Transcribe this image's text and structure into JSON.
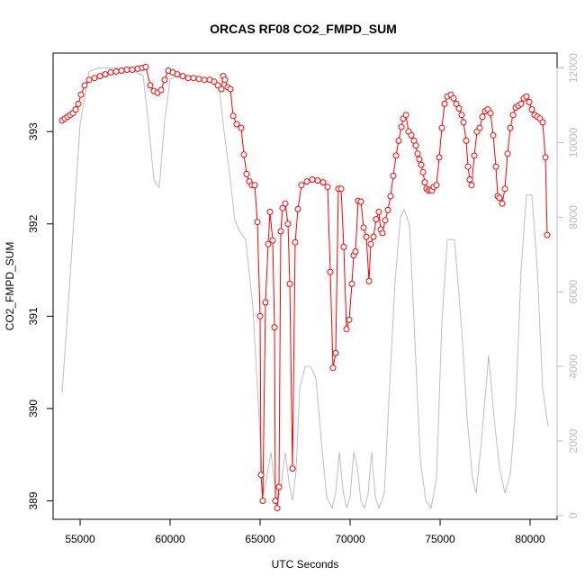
{
  "chart_data": {
    "type": "line",
    "title": "ORCAS RF08 CO2_FMPD_SUM",
    "xlabel": "UTC Seconds",
    "ylabel": "CO2_FMPD_SUM",
    "xlim": [
      53500,
      81500
    ],
    "ylim": [
      388.8,
      393.85
    ],
    "y2lim": [
      -100,
      12400
    ],
    "x_ticks": [
      55000,
      60000,
      65000,
      70000,
      75000,
      80000
    ],
    "y_ticks": [
      389,
      390,
      391,
      392,
      393
    ],
    "y2_ticks": [
      0,
      2000,
      4000,
      6000,
      8000,
      10000,
      12000
    ],
    "grid": false,
    "colors": {
      "primary": "#ff0000",
      "secondary": "#bebebe",
      "axis": "#000000"
    },
    "series": [
      {
        "role": "co2",
        "axis": "left",
        "style": "line+points",
        "points": [
          [
            54000,
            393.12
          ],
          [
            54150,
            393.14
          ],
          [
            54300,
            393.16
          ],
          [
            54450,
            393.18
          ],
          [
            54600,
            393.2
          ],
          [
            54750,
            393.24
          ],
          [
            54900,
            393.3
          ],
          [
            55050,
            393.4
          ],
          [
            55250,
            393.5
          ],
          [
            55500,
            393.56
          ],
          [
            55800,
            393.58
          ],
          [
            56100,
            393.6
          ],
          [
            56400,
            393.62
          ],
          [
            56700,
            393.64
          ],
          [
            57000,
            393.65
          ],
          [
            57300,
            393.66
          ],
          [
            57600,
            393.67
          ],
          [
            57900,
            393.67
          ],
          [
            58200,
            393.68
          ],
          [
            58450,
            393.69
          ],
          [
            58650,
            393.7
          ],
          [
            58900,
            393.5
          ],
          [
            59100,
            393.44
          ],
          [
            59300,
            393.42
          ],
          [
            59500,
            393.45
          ],
          [
            59700,
            393.56
          ],
          [
            59900,
            393.66
          ],
          [
            60150,
            393.64
          ],
          [
            60400,
            393.62
          ],
          [
            60700,
            393.6
          ],
          [
            61000,
            393.58
          ],
          [
            61300,
            393.58
          ],
          [
            61600,
            393.57
          ],
          [
            61900,
            393.56
          ],
          [
            62200,
            393.56
          ],
          [
            62450,
            393.54
          ],
          [
            62650,
            393.5
          ],
          [
            62850,
            393.46
          ],
          [
            62950,
            393.6
          ],
          [
            63050,
            393.56
          ],
          [
            63200,
            393.48
          ],
          [
            63350,
            393.46
          ],
          [
            63500,
            393.17
          ],
          [
            63700,
            393.08
          ],
          [
            63950,
            393.04
          ],
          [
            64100,
            392.75
          ],
          [
            64250,
            392.54
          ],
          [
            64400,
            392.46
          ],
          [
            64550,
            392.42
          ],
          [
            64700,
            392.42
          ],
          [
            64850,
            392.02
          ],
          [
            65000,
            391.0
          ],
          [
            65050,
            389.28
          ],
          [
            65150,
            389.0
          ],
          [
            65300,
            391.15
          ],
          [
            65450,
            391.78
          ],
          [
            65550,
            392.13
          ],
          [
            65700,
            391.82
          ],
          [
            65800,
            390.88
          ],
          [
            65850,
            389.0
          ],
          [
            65950,
            388.92
          ],
          [
            66050,
            389.15
          ],
          [
            66150,
            391.92
          ],
          [
            66250,
            392.17
          ],
          [
            66400,
            392.22
          ],
          [
            66550,
            392.0
          ],
          [
            66650,
            391.35
          ],
          [
            66800,
            389.35
          ],
          [
            66950,
            391.8
          ],
          [
            67100,
            392.16
          ],
          [
            67300,
            392.42
          ],
          [
            67600,
            392.46
          ],
          [
            67900,
            392.48
          ],
          [
            68200,
            392.47
          ],
          [
            68500,
            392.45
          ],
          [
            68750,
            392.4
          ],
          [
            68900,
            391.48
          ],
          [
            69050,
            390.44
          ],
          [
            69200,
            390.6
          ],
          [
            69350,
            392.38
          ],
          [
            69500,
            392.38
          ],
          [
            69650,
            391.75
          ],
          [
            69800,
            390.86
          ],
          [
            69950,
            390.96
          ],
          [
            70100,
            391.35
          ],
          [
            70200,
            391.66
          ],
          [
            70300,
            391.7
          ],
          [
            70450,
            392.25
          ],
          [
            70600,
            392.24
          ],
          [
            70750,
            391.96
          ],
          [
            70900,
            391.86
          ],
          [
            71050,
            391.38
          ],
          [
            71150,
            391.78
          ],
          [
            71300,
            391.86
          ],
          [
            71450,
            392.05
          ],
          [
            71600,
            392.13
          ],
          [
            71700,
            391.94
          ],
          [
            71800,
            391.9
          ],
          [
            71950,
            392.04
          ],
          [
            72100,
            392.15
          ],
          [
            72250,
            392.3
          ],
          [
            72400,
            392.52
          ],
          [
            72550,
            392.74
          ],
          [
            72700,
            392.9
          ],
          [
            72850,
            393.05
          ],
          [
            72950,
            393.14
          ],
          [
            73100,
            393.18
          ],
          [
            73250,
            393.0
          ],
          [
            73400,
            392.96
          ],
          [
            73550,
            392.9
          ],
          [
            73650,
            392.85
          ],
          [
            73750,
            392.76
          ],
          [
            73850,
            392.7
          ],
          [
            73950,
            392.64
          ],
          [
            74050,
            392.56
          ],
          [
            74150,
            392.45
          ],
          [
            74250,
            392.38
          ],
          [
            74350,
            392.36
          ],
          [
            74450,
            392.37
          ],
          [
            74550,
            392.36
          ],
          [
            74650,
            392.4
          ],
          [
            74800,
            392.42
          ],
          [
            74950,
            392.72
          ],
          [
            75100,
            393.04
          ],
          [
            75250,
            393.3
          ],
          [
            75400,
            393.38
          ],
          [
            75600,
            393.4
          ],
          [
            75750,
            393.36
          ],
          [
            75900,
            393.3
          ],
          [
            76050,
            393.25
          ],
          [
            76200,
            393.18
          ],
          [
            76300,
            393.1
          ],
          [
            76450,
            392.9
          ],
          [
            76550,
            392.62
          ],
          [
            76650,
            392.48
          ],
          [
            76750,
            392.42
          ],
          [
            76900,
            392.74
          ],
          [
            77050,
            393.0
          ],
          [
            77200,
            393.04
          ],
          [
            77350,
            393.16
          ],
          [
            77500,
            393.22
          ],
          [
            77650,
            393.24
          ],
          [
            77800,
            393.2
          ],
          [
            77950,
            392.96
          ],
          [
            78100,
            392.62
          ],
          [
            78200,
            392.3
          ],
          [
            78300,
            392.28
          ],
          [
            78450,
            392.22
          ],
          [
            78600,
            392.38
          ],
          [
            78750,
            392.76
          ],
          [
            78900,
            393.04
          ],
          [
            79050,
            393.18
          ],
          [
            79200,
            393.26
          ],
          [
            79350,
            393.28
          ],
          [
            79500,
            393.3
          ],
          [
            79650,
            393.36
          ],
          [
            79800,
            393.38
          ],
          [
            79950,
            393.32
          ],
          [
            80100,
            393.24
          ],
          [
            80250,
            393.18
          ],
          [
            80400,
            393.16
          ],
          [
            80550,
            393.14
          ],
          [
            80700,
            393.1
          ],
          [
            80850,
            392.72
          ],
          [
            80950,
            391.88
          ]
        ]
      },
      {
        "role": "altitude",
        "axis": "right",
        "style": "line",
        "points": [
          [
            54000,
            3300
          ],
          [
            54500,
            6800
          ],
          [
            55000,
            10500
          ],
          [
            55500,
            11900
          ],
          [
            56000,
            12000
          ],
          [
            57000,
            12000
          ],
          [
            58000,
            11900
          ],
          [
            58500,
            11800
          ],
          [
            58800,
            10500
          ],
          [
            59100,
            9000
          ],
          [
            59400,
            8800
          ],
          [
            59700,
            10600
          ],
          [
            60000,
            11700
          ],
          [
            60500,
            11800
          ],
          [
            61000,
            11800
          ],
          [
            62000,
            11700
          ],
          [
            62700,
            11600
          ],
          [
            63000,
            10300
          ],
          [
            63300,
            9200
          ],
          [
            63600,
            7900
          ],
          [
            63900,
            7600
          ],
          [
            64200,
            7400
          ],
          [
            64600,
            5600
          ],
          [
            64900,
            3000
          ],
          [
            65100,
            1200
          ],
          [
            65200,
            600
          ],
          [
            65400,
            1100
          ],
          [
            65600,
            1700
          ],
          [
            65800,
            900
          ],
          [
            66000,
            400
          ],
          [
            66200,
            900
          ],
          [
            66400,
            1700
          ],
          [
            66600,
            900
          ],
          [
            66800,
            400
          ],
          [
            67000,
            1200
          ],
          [
            67200,
            3400
          ],
          [
            67500,
            4000
          ],
          [
            67800,
            4000
          ],
          [
            68100,
            3700
          ],
          [
            68400,
            2000
          ],
          [
            68700,
            500
          ],
          [
            69000,
            200
          ],
          [
            69200,
            600
          ],
          [
            69400,
            1700
          ],
          [
            69600,
            700
          ],
          [
            69800,
            200
          ],
          [
            70000,
            500
          ],
          [
            70200,
            1700
          ],
          [
            70400,
            1300
          ],
          [
            70600,
            400
          ],
          [
            70800,
            200
          ],
          [
            71000,
            600
          ],
          [
            71200,
            1700
          ],
          [
            71400,
            500
          ],
          [
            71600,
            200
          ],
          [
            71900,
            600
          ],
          [
            72200,
            3500
          ],
          [
            72500,
            6300
          ],
          [
            72800,
            8000
          ],
          [
            73000,
            8200
          ],
          [
            73300,
            7800
          ],
          [
            73600,
            4700
          ],
          [
            73900,
            1500
          ],
          [
            74200,
            400
          ],
          [
            74500,
            200
          ],
          [
            74800,
            1000
          ],
          [
            75100,
            5200
          ],
          [
            75400,
            7400
          ],
          [
            75800,
            7400
          ],
          [
            76200,
            5000
          ],
          [
            76500,
            2600
          ],
          [
            76800,
            1000
          ],
          [
            77000,
            600
          ],
          [
            77300,
            2000
          ],
          [
            77700,
            4300
          ],
          [
            78000,
            2600
          ],
          [
            78300,
            1300
          ],
          [
            78600,
            600
          ],
          [
            78900,
            1100
          ],
          [
            79200,
            2900
          ],
          [
            79500,
            6600
          ],
          [
            79800,
            8600
          ],
          [
            80100,
            8600
          ],
          [
            80400,
            6600
          ],
          [
            80700,
            3400
          ],
          [
            81000,
            2400
          ]
        ]
      }
    ]
  }
}
